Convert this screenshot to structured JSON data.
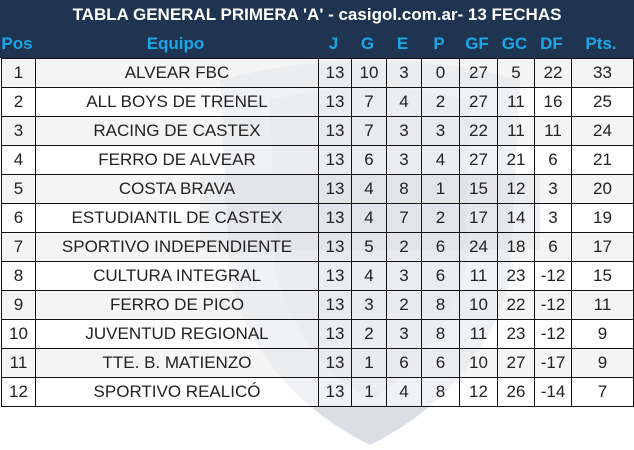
{
  "title": "TABLA GENERAL PRIMERA 'A'  - casigol.com.ar- 13 FECHAS",
  "watermark": "CASIGOL",
  "colors": {
    "header_bg": "#1f3450",
    "header_text": "#1aa7e8",
    "title_text": "#ffffff"
  },
  "columns": [
    "Pos",
    "Equipo",
    "J",
    "G",
    "E",
    "P",
    "GF",
    "GC",
    "DF",
    "Pts."
  ],
  "rows": [
    [
      "1",
      "ALVEAR FBC",
      "13",
      "10",
      "3",
      "0",
      "27",
      "5",
      "22",
      "33"
    ],
    [
      "2",
      "ALL BOYS DE TRENEL",
      "13",
      "7",
      "4",
      "2",
      "27",
      "11",
      "16",
      "25"
    ],
    [
      "3",
      "RACING DE CASTEX",
      "13",
      "7",
      "3",
      "3",
      "22",
      "11",
      "11",
      "24"
    ],
    [
      "4",
      "FERRO DE ALVEAR",
      "13",
      "6",
      "3",
      "4",
      "27",
      "21",
      "6",
      "21"
    ],
    [
      "5",
      "COSTA BRAVA",
      "13",
      "4",
      "8",
      "1",
      "15",
      "12",
      "3",
      "20"
    ],
    [
      "6",
      "ESTUDIANTIL DE CASTEX",
      "13",
      "4",
      "7",
      "2",
      "17",
      "14",
      "3",
      "19"
    ],
    [
      "7",
      "SPORTIVO INDEPENDIENTE",
      "13",
      "5",
      "2",
      "6",
      "24",
      "18",
      "6",
      "17"
    ],
    [
      "8",
      "CULTURA INTEGRAL",
      "13",
      "4",
      "3",
      "6",
      "11",
      "23",
      "-12",
      "15"
    ],
    [
      "9",
      "FERRO DE PICO",
      "13",
      "3",
      "2",
      "8",
      "10",
      "22",
      "-12",
      "11"
    ],
    [
      "10",
      "JUVENTUD REGIONAL",
      "13",
      "2",
      "3",
      "8",
      "11",
      "23",
      "-12",
      "9"
    ],
    [
      "11",
      "TTE. B. MATIENZO",
      "13",
      "1",
      "6",
      "6",
      "10",
      "27",
      "-17",
      "9"
    ],
    [
      "12",
      "SPORTIVO REALICÓ",
      "13",
      "1",
      "4",
      "8",
      "12",
      "26",
      "-14",
      "7"
    ]
  ]
}
